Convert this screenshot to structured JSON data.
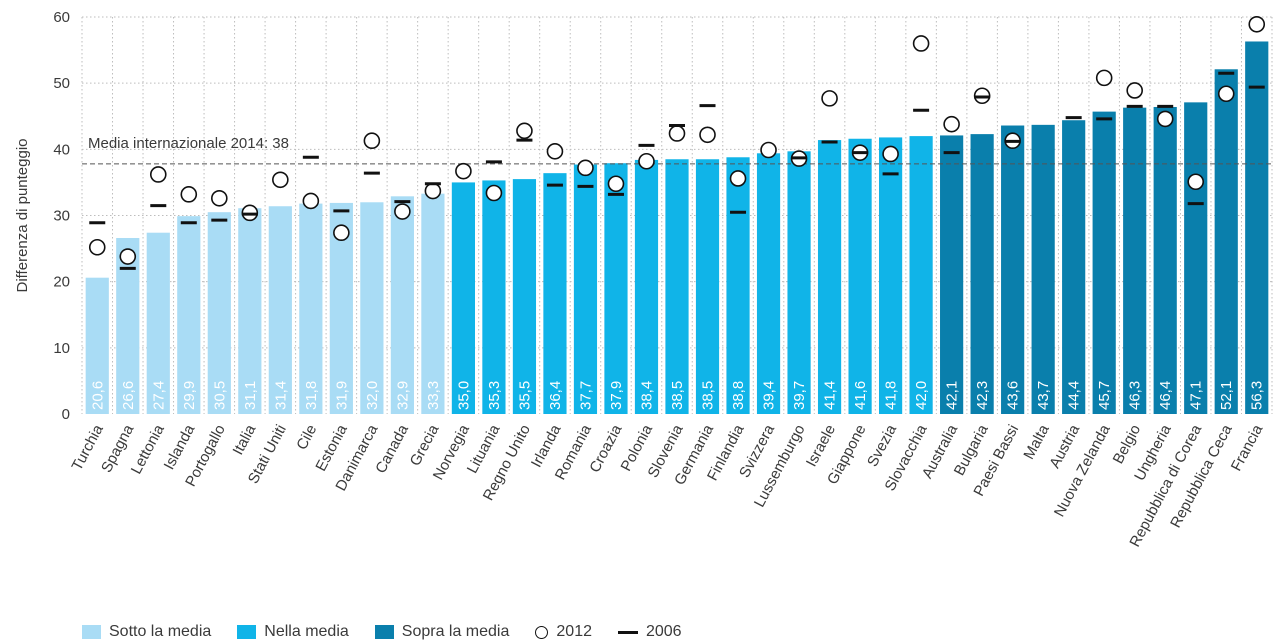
{
  "chart_data": {
    "type": "bar",
    "ylabel": "Differenza di punteggio",
    "ylim": [
      0,
      60
    ],
    "yticks": [
      0,
      10,
      20,
      30,
      40,
      50,
      60
    ],
    "grid": true,
    "reference_line": {
      "value": 37.8,
      "label": "Media internazionale 2014: 38"
    },
    "categories": [
      "Turchia",
      "Spagna",
      "Lettonia",
      "Islanda",
      "Portogallo",
      "Italia",
      "Stati Uniti",
      "Cile",
      "Estonia",
      "Danimarca",
      "Canada",
      "Grecia",
      "Norvegia",
      "Lituania",
      "Regno Unito",
      "Irlanda",
      "Romania",
      "Croazia",
      "Polonia",
      "Slovenia",
      "Germania",
      "Finlandia",
      "Svizzera",
      "Lussemburgo",
      "Israele",
      "Giappone",
      "Svezia",
      "Slovacchia",
      "Australia",
      "Bulgaria",
      "Paesi Bassi",
      "Malta",
      "Austria",
      "Nuova Zelanda",
      "Belgio",
      "Ungheria",
      "Repubblica di Corea",
      "Repubblica Ceca",
      "Francia"
    ],
    "values": [
      20.6,
      26.6,
      27.4,
      29.9,
      30.5,
      31.1,
      31.4,
      31.8,
      31.9,
      32.0,
      32.9,
      33.3,
      35.0,
      35.3,
      35.5,
      36.4,
      37.7,
      37.9,
      38.4,
      38.5,
      38.5,
      38.8,
      39.4,
      39.7,
      41.4,
      41.6,
      41.8,
      42.0,
      42.1,
      42.3,
      43.6,
      43.7,
      44.4,
      45.7,
      46.3,
      46.4,
      47.1,
      52.1,
      56.3
    ],
    "value_labels": [
      "20,6",
      "26,6",
      "27,4",
      "29,9",
      "30,5",
      "31,1",
      "31,4",
      "31,8",
      "31,9",
      "32,0",
      "32,9",
      "33,3",
      "35,0",
      "35,3",
      "35,5",
      "36,4",
      "37,7",
      "37,9",
      "38,4",
      "38,5",
      "38,5",
      "38,8",
      "39,4",
      "39,7",
      "41,4",
      "41,6",
      "41,8",
      "42,0",
      "42,1",
      "42,3",
      "43,6",
      "43,7",
      "44,4",
      "45,7",
      "46,3",
      "46,4",
      "47,1",
      "52,1",
      "56,3"
    ],
    "groups": [
      "below",
      "below",
      "below",
      "below",
      "below",
      "below",
      "below",
      "below",
      "below",
      "below",
      "below",
      "below",
      "in",
      "in",
      "in",
      "in",
      "in",
      "in",
      "in",
      "in",
      "in",
      "in",
      "in",
      "in",
      "in",
      "in",
      "in",
      "in",
      "above",
      "above",
      "above",
      "above",
      "above",
      "above",
      "above",
      "above",
      "above",
      "above",
      "above"
    ],
    "series": [
      {
        "name": "2012",
        "marker": "circle",
        "values": [
          25.2,
          23.8,
          36.2,
          33.2,
          32.6,
          30.4,
          35.4,
          32.2,
          27.4,
          41.3,
          30.6,
          33.7,
          36.7,
          33.4,
          42.8,
          39.7,
          37.2,
          34.8,
          38.2,
          42.4,
          42.2,
          35.6,
          39.9,
          38.6,
          47.7,
          39.5,
          39.3,
          56.0,
          43.8,
          48.1,
          41.3,
          null,
          null,
          50.8,
          48.9,
          44.6,
          35.1,
          48.4,
          58.9
        ]
      },
      {
        "name": "2006",
        "marker": "dash",
        "values": [
          28.9,
          22.0,
          31.5,
          28.9,
          29.3,
          30.2,
          null,
          38.8,
          30.7,
          36.4,
          32.1,
          34.8,
          null,
          38.1,
          41.4,
          34.6,
          34.4,
          33.2,
          40.6,
          43.6,
          46.6,
          30.5,
          null,
          38.7,
          41.1,
          39.5,
          36.3,
          45.9,
          39.5,
          47.9,
          41.2,
          null,
          44.8,
          44.6,
          46.5,
          46.5,
          31.8,
          51.5,
          49.4
        ]
      }
    ]
  },
  "legend": {
    "below_label": "Sotto la media",
    "in_label": "Nella media",
    "above_label": "Sopra la media",
    "s2012_label": "2012",
    "s2006_label": "2006"
  },
  "colors": {
    "below": "#a9dcf5",
    "in": "#10b4e8",
    "above": "#0a7fac",
    "marker": "#111111",
    "grid": "#bdbdbd",
    "reference_line": "#555555"
  }
}
